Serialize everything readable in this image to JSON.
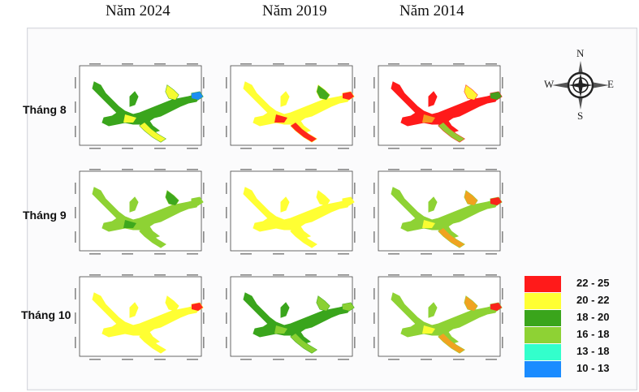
{
  "years": [
    "Năm 2024",
    "Năm 2019",
    "Năm 2014"
  ],
  "months": [
    "Tháng 8",
    "Tháng 9",
    "Tháng 10"
  ],
  "colors": {
    "red": "#ff1a1a",
    "orange": "#f5a020",
    "yellow": "#ffff33",
    "green": "#3aa51c",
    "lightgreen": "#8ed234",
    "cyan": "#33ffcc",
    "blue": "#1a8cff"
  },
  "legend": [
    {
      "label": "22 - 25",
      "color": "#ff1a1a"
    },
    {
      "label": "20 - 22",
      "color": "#ffff33"
    },
    {
      "label": "18 - 20",
      "color": "#3aa51c"
    },
    {
      "label": "16 - 18",
      "color": "#8ed234"
    },
    {
      "label": "13 - 18",
      "color": "#33ffcc"
    },
    {
      "label": "10 - 13",
      "color": "#1a8cff"
    }
  ],
  "compass": {
    "n": "N",
    "s": "S",
    "e": "E",
    "w": "W",
    "icon": "compass-rose-icon"
  },
  "maps": [
    {
      "year": "Năm 2024",
      "month": "Tháng 8",
      "base": "#3aa51c",
      "patches": [
        "#ffff33",
        "#ffff33",
        "#ffff33",
        "#1a8cff"
      ]
    },
    {
      "year": "Năm 2019",
      "month": "Tháng 8",
      "base": "#ffff33",
      "patches": [
        "#ff1a1a",
        "#ff1a1a",
        "#3aa51c",
        "#ff1a1a"
      ]
    },
    {
      "year": "Năm 2014",
      "month": "Tháng 8",
      "base": "#ff1a1a",
      "patches": [
        "#f5a020",
        "#8ed234",
        "#ffff33",
        "#3aa51c"
      ]
    },
    {
      "year": "Năm 2024",
      "month": "Tháng 9",
      "base": "#8ed234",
      "patches": [
        "#3aa51c",
        "#8ed234",
        "#3aa51c",
        "#8ed234"
      ]
    },
    {
      "year": "Năm 2019",
      "month": "Tháng 9",
      "base": "#ffff33",
      "patches": [
        "#ffff33",
        "#ffff33",
        "#ffff33",
        "#ffff33"
      ]
    },
    {
      "year": "Năm 2014",
      "month": "Tháng 9",
      "base": "#8ed234",
      "patches": [
        "#ffff33",
        "#f5a020",
        "#f5a020",
        "#ff1a1a"
      ]
    },
    {
      "year": "Năm 2024",
      "month": "Tháng 10",
      "base": "#ffff33",
      "patches": [
        "#ffff33",
        "#ffff33",
        "#ffff33",
        "#ff1a1a"
      ]
    },
    {
      "year": "Năm 2019",
      "month": "Tháng 10",
      "base": "#3aa51c",
      "patches": [
        "#8ed234",
        "#8ed234",
        "#8ed234",
        "#8ed234"
      ]
    },
    {
      "year": "Năm 2014",
      "month": "Tháng 10",
      "base": "#8ed234",
      "patches": [
        "#ffff33",
        "#f5a020",
        "#f5a020",
        "#ff1a1a"
      ]
    }
  ]
}
